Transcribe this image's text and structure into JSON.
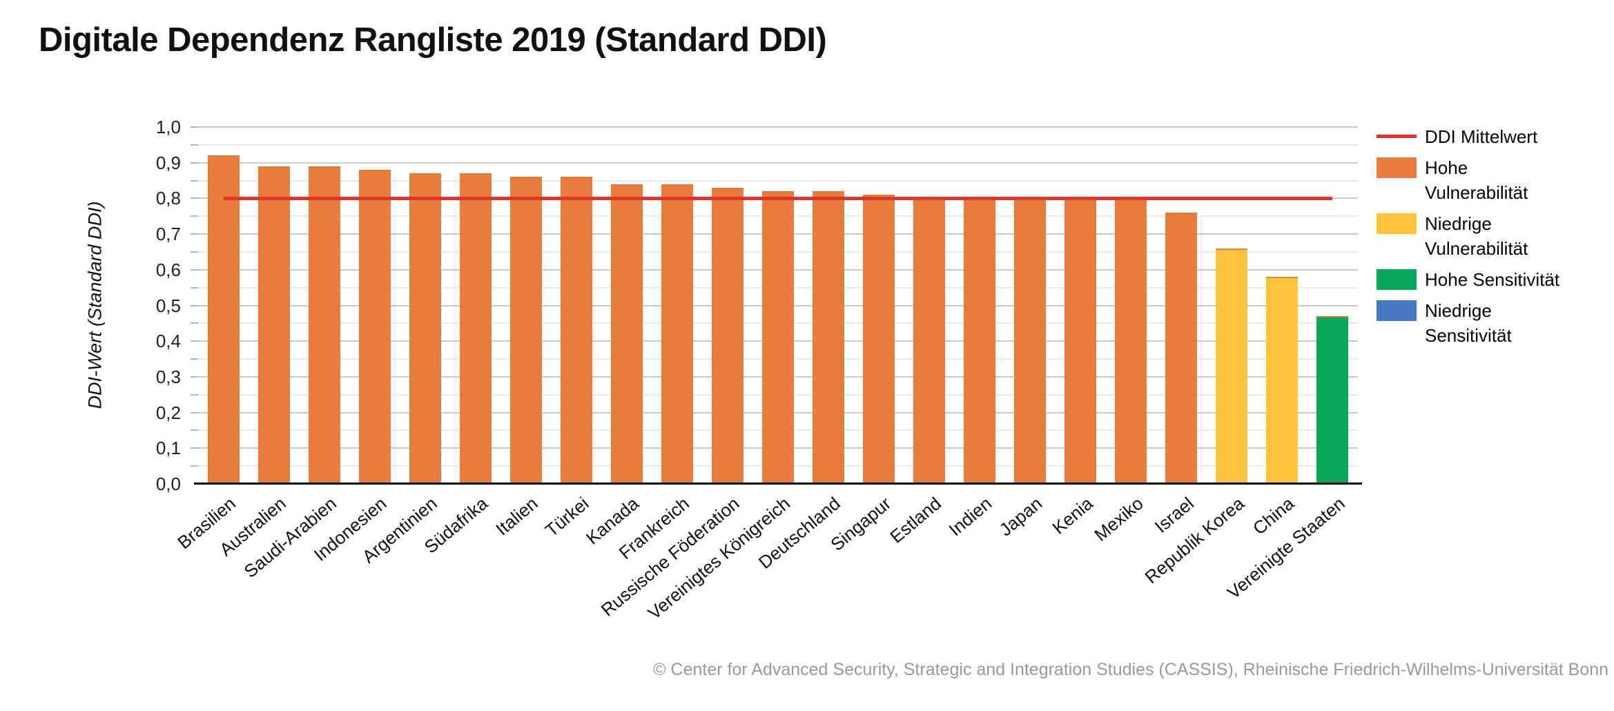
{
  "title": "Digitale Dependenz Rangliste 2019 (Standard DDI)",
  "footer": "© Center for Advanced Security, Strategic and Integration Studies (CASSIS), Rheinische Friedrich-Wilhelms-Universität Bonn",
  "y_axis": {
    "title": "DDI-Wert (Standard DDI)",
    "tick_labels_top_down": [
      "1,0",
      "0,9",
      "0,8",
      "0,7",
      "0,6",
      "0,5",
      "0,4",
      "0,3",
      "0,2",
      "0,1",
      "0,0"
    ],
    "min": 0,
    "max": 1,
    "major_step": 0.1,
    "minor_step": 0.05
  },
  "legend": [
    {
      "label": "DDI Mittelwert",
      "lines": [
        "DDI Mittelwert"
      ],
      "type": "line",
      "color": "#dd352b"
    },
    {
      "label": "Hohe Vulnerabilität",
      "lines": [
        "Hohe",
        "Vulnerabilität"
      ],
      "type": "box",
      "color": "#e87c3c"
    },
    {
      "label": "Niedrige Vulnerabilität",
      "lines": [
        "Niedrige",
        "Vulnerabilität"
      ],
      "type": "box",
      "color": "#fec43c"
    },
    {
      "label": "Hohe Sensitivität",
      "lines": [
        "Hohe Sensitivität"
      ],
      "type": "box",
      "color": "#0aa65a"
    },
    {
      "label": "Niedrige Sensitivität",
      "lines": [
        "Niedrige",
        "Sensitivität"
      ],
      "type": "box",
      "color": "#4677bf"
    }
  ],
  "chart_data": {
    "type": "bar",
    "title": "Digitale Dependenz Rangliste 2019 (Standard DDI)",
    "xlabel": "",
    "ylabel": "DDI-Wert (Standard DDI)",
    "ylim": [
      0,
      1
    ],
    "grid": "on",
    "legend_position": "right",
    "categories": [
      "Brasilien",
      "Australien",
      "Saudi-Arabien",
      "Indonesien",
      "Argentinien",
      "Südafrika",
      "Italien",
      "Türkei",
      "Kanada",
      "Frankreich",
      "Russische Föderation",
      "Vereinigtes Königreich",
      "Deutschland",
      "Singapur",
      "Estland",
      "Indien",
      "Japan",
      "Kenia",
      "Mexiko",
      "Israel",
      "Republik Korea",
      "China",
      "Vereinigte Staaten"
    ],
    "values": [
      0.92,
      0.89,
      0.89,
      0.88,
      0.87,
      0.87,
      0.86,
      0.86,
      0.84,
      0.84,
      0.83,
      0.82,
      0.82,
      0.81,
      0.8,
      0.8,
      0.8,
      0.8,
      0.8,
      0.76,
      0.66,
      0.58,
      0.47
    ],
    "groups": [
      "Hohe Vulnerabilität",
      "Hohe Vulnerabilität",
      "Hohe Vulnerabilität",
      "Hohe Vulnerabilität",
      "Hohe Vulnerabilität",
      "Hohe Vulnerabilität",
      "Hohe Vulnerabilität",
      "Hohe Vulnerabilität",
      "Hohe Vulnerabilität",
      "Hohe Vulnerabilität",
      "Hohe Vulnerabilität",
      "Hohe Vulnerabilität",
      "Hohe Vulnerabilität",
      "Hohe Vulnerabilität",
      "Hohe Vulnerabilität",
      "Hohe Vulnerabilität",
      "Hohe Vulnerabilität",
      "Hohe Vulnerabilität",
      "Hohe Vulnerabilität",
      "Hohe Vulnerabilität",
      "Niedrige Vulnerabilität",
      "Niedrige Vulnerabilität",
      "Hohe Sensitivität"
    ],
    "group_colors": {
      "Hohe Vulnerabilität": "#e87c3c",
      "Niedrige Vulnerabilität": "#fec43c",
      "Hohe Sensitivität": "#0aa65a",
      "Niedrige Sensitivität": "#4677bf"
    },
    "reference_line": {
      "label": "DDI Mittelwert",
      "value": 0.8,
      "color": "#dd352b"
    }
  }
}
